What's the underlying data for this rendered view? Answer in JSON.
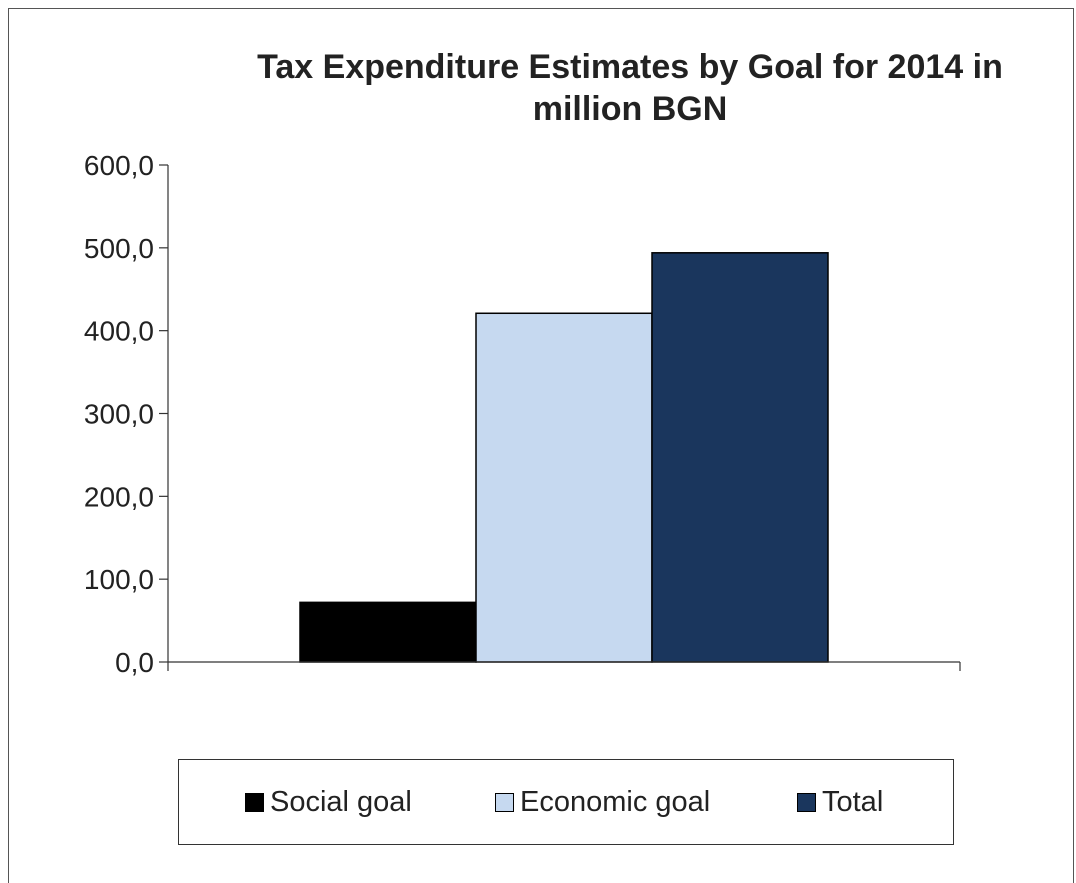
{
  "chart_data": {
    "type": "bar",
    "title": "Tax Expenditure Estimates by Goal for 2014 in million BGN",
    "xlabel": "",
    "ylabel": "",
    "ylim": [
      0,
      600
    ],
    "y_ticks": [
      "0,0",
      "100,0",
      "200,0",
      "300,0",
      "400,0",
      "500,0",
      "600,0"
    ],
    "categories": [
      ""
    ],
    "series": [
      {
        "name": "Social goal",
        "values": [
          72
        ],
        "color": "#000000"
      },
      {
        "name": "Economic goal",
        "values": [
          421
        ],
        "color": "#c6d9f0"
      },
      {
        "name": "Total",
        "values": [
          494
        ],
        "color": "#1a365d"
      }
    ],
    "grid": false,
    "legend_position": "bottom"
  }
}
